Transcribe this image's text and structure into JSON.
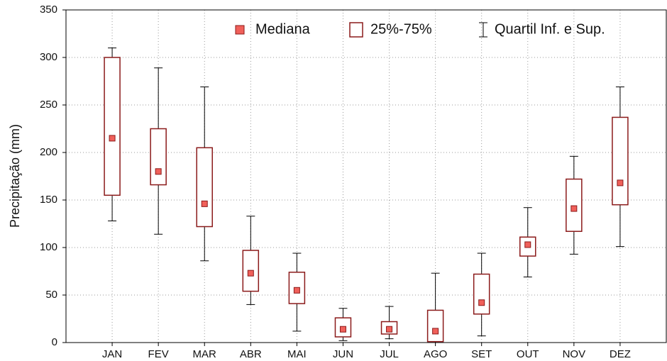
{
  "chart_data": {
    "type": "box",
    "y_label": "Precipitação (mm)",
    "categories": [
      "JAN",
      "FEV",
      "MAR",
      "ABR",
      "MAI",
      "JUN",
      "JUL",
      "AGO",
      "SET",
      "OUT",
      "NOV",
      "DEZ"
    ],
    "min": [
      128,
      114,
      86,
      40,
      12,
      2,
      4,
      0,
      7,
      69,
      93,
      101
    ],
    "q1": [
      155,
      166,
      122,
      54,
      41,
      6,
      9,
      1,
      30,
      91,
      117,
      145
    ],
    "median": [
      215,
      180,
      146,
      73,
      55,
      14,
      14,
      12,
      42,
      103,
      141,
      168
    ],
    "q3": [
      300,
      225,
      205,
      97,
      74,
      26,
      22,
      34,
      72,
      111,
      172,
      237
    ],
    "max": [
      310,
      289,
      269,
      133,
      94,
      36,
      38,
      73,
      94,
      142,
      196,
      269
    ],
    "legend": {
      "median": "Mediana",
      "box": "25%-75%",
      "whisker": "Quartil Inf. e Sup."
    },
    "box_color": "#8b1a1a",
    "median_color": "#f0605a",
    "ylim": [
      0,
      350
    ],
    "yticks": [
      0,
      50,
      100,
      150,
      200,
      250,
      300,
      350
    ],
    "grid": true
  }
}
